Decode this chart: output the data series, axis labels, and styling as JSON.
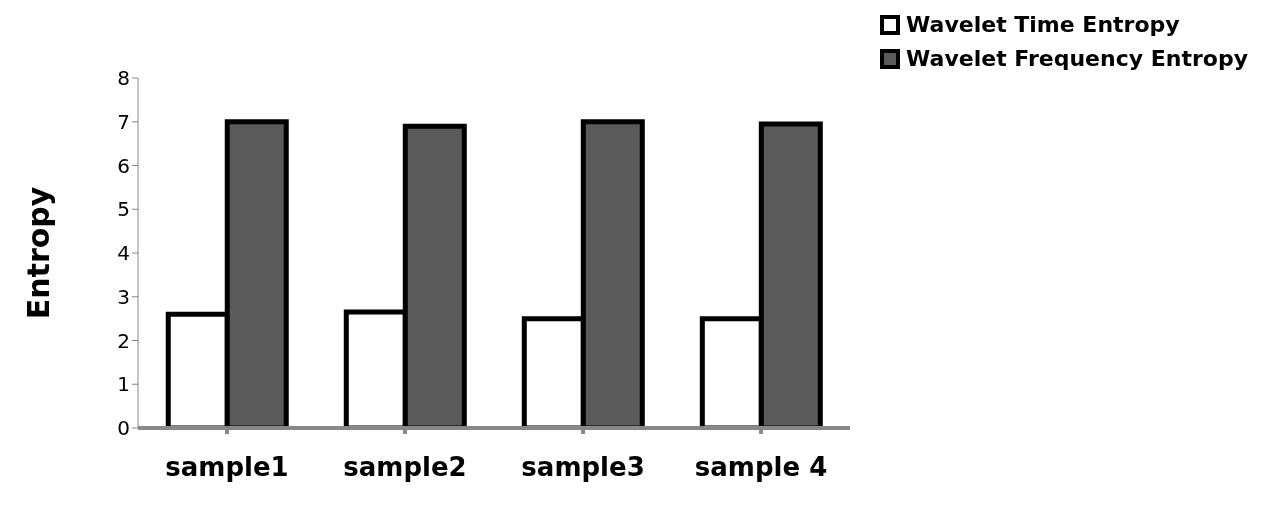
{
  "chart_data": {
    "type": "bar",
    "ylabel": "Entropy",
    "categories": [
      "sample1",
      "sample2",
      "sample3",
      "sample 4"
    ],
    "series": [
      {
        "name": "Wavelet Time Entropy",
        "color": "#ffffff",
        "values": [
          2.6,
          2.65,
          2.5,
          2.5
        ]
      },
      {
        "name": "Wavelet Frequency  Entropy",
        "color": "#5a5a5a",
        "values": [
          7.0,
          6.9,
          7.0,
          6.95
        ]
      }
    ],
    "ylim": [
      0,
      8
    ],
    "yticks": [
      0,
      1,
      2,
      3,
      4,
      5,
      6,
      7,
      8
    ],
    "grid": false,
    "legend": "top right"
  }
}
